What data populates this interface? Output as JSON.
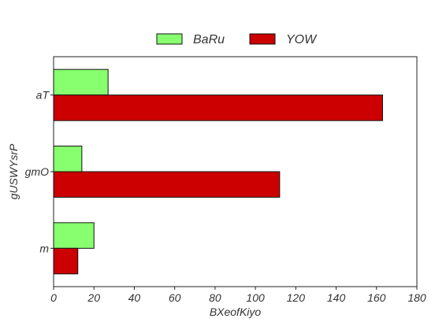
{
  "chart_data": {
    "type": "bar",
    "orientation": "horizontal",
    "categories": [
      "aT",
      "gmO",
      "m"
    ],
    "series": [
      {
        "name": "BaRu",
        "values": [
          27,
          14,
          20
        ],
        "color": "#88ff6e"
      },
      {
        "name": "YOW",
        "values": [
          163,
          112,
          12
        ],
        "color": "#cc0000"
      }
    ],
    "xlabel": "BXeofKiyo",
    "ylabel": "gUSWYsrP",
    "xlim": [
      0,
      180
    ],
    "xticks": [
      "0",
      "20",
      "40",
      "60",
      "80",
      "100",
      "120",
      "140",
      "160",
      "180"
    ],
    "grid": false,
    "legend_position": "top-center"
  }
}
